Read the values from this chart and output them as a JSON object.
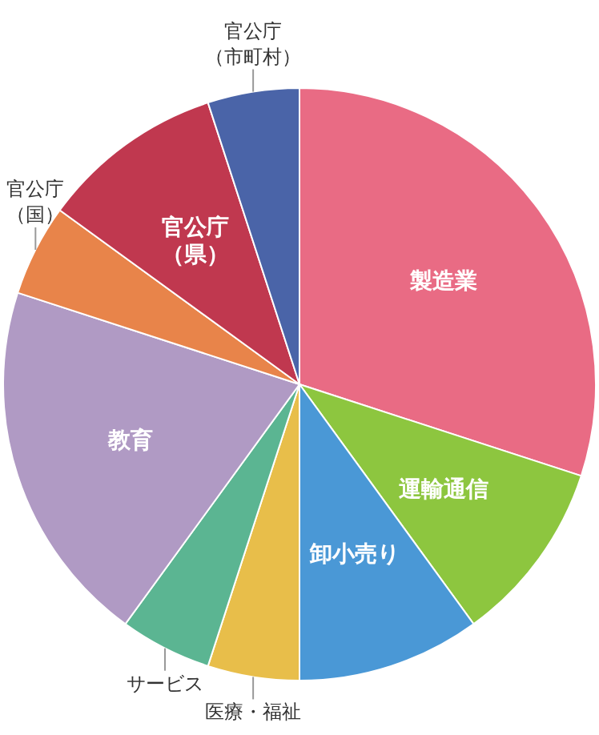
{
  "chart_data": {
    "type": "pie",
    "categories": [
      "製造業",
      "運輸通信",
      "卸小売り",
      "医療・福祉",
      "サービス",
      "教育",
      "官公庁（国）",
      "官公庁（県）",
      "官公庁（市町村）"
    ],
    "values": [
      30,
      10,
      10,
      5,
      5,
      20,
      5,
      10,
      5
    ],
    "colors": [
      "#e96b84",
      "#8dc63f",
      "#4a98d6",
      "#e8be4a",
      "#5bb592",
      "#b09ac4",
      "#e8844a",
      "#c0384f",
      "#4a64a8"
    ]
  }
}
